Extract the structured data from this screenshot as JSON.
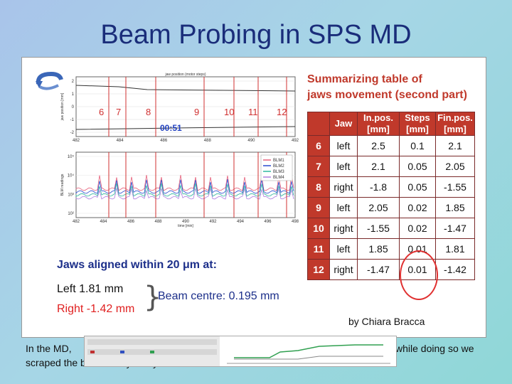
{
  "slide": {
    "title": "Beam Probing in SPS MD",
    "author": "by Chiara Bracca",
    "caption_left": "In the MD,",
    "caption_right": "while doing so we",
    "caption_line2": "scraped the beam away bit by bit."
  },
  "plot_top": {
    "title": "jaw position (motor steps)",
    "ylabel": "jaw position [mm]",
    "xlabel": "event time [min]",
    "yticks": [
      "2",
      "1",
      "0",
      "-1",
      "-2"
    ],
    "xticks": [
      "482",
      "484",
      "486",
      "488",
      "490",
      "492"
    ],
    "step_labels": [
      "6",
      "7",
      "8",
      "9",
      "10",
      "11",
      "12"
    ],
    "timer": "00:51"
  },
  "plot_bottom": {
    "ylabel": "BLM readings",
    "xlabel": "time [min]",
    "yticks": [
      "10⁵",
      "10⁴",
      "10³",
      "10²"
    ],
    "xticks": [
      "482",
      "484",
      "486",
      "488",
      "490",
      "492",
      "494",
      "496",
      "498"
    ],
    "legend": [
      {
        "name": "BLM1",
        "color": "#e6607a"
      },
      {
        "name": "BLM2",
        "color": "#2a4bd0"
      },
      {
        "name": "BLM3",
        "color": "#2fb9a0"
      },
      {
        "name": "BLM4",
        "color": "#b07de0"
      }
    ]
  },
  "alignment": {
    "title": "Jaws aligned within 20 μm at:",
    "left": "Left   1.81 mm",
    "right": "Right -1.42 mm",
    "beam_centre": "Beam centre: 0.195 mm"
  },
  "table": {
    "title_line1": "Summarizing table of",
    "title_line2": "jaws movement (second part)",
    "headers": [
      "",
      "Jaw",
      "In.pos. [mm]",
      "Steps [mm]",
      "Fin.pos. [mm]"
    ],
    "rows": [
      {
        "num": "6",
        "jaw": "left",
        "in": "2.5",
        "step": "0.1",
        "fin": "2.1"
      },
      {
        "num": "7",
        "jaw": "left",
        "in": "2.1",
        "step": "0.05",
        "fin": "2.05"
      },
      {
        "num": "8",
        "jaw": "right",
        "in": "-1.8",
        "step": "0.05",
        "fin": "-1.55"
      },
      {
        "num": "9",
        "jaw": "left",
        "in": "2.05",
        "step": "0.02",
        "fin": "1.85"
      },
      {
        "num": "10",
        "jaw": "right",
        "in": "-1.55",
        "step": "0.02",
        "fin": "-1.47"
      },
      {
        "num": "11",
        "jaw": "left",
        "in": "1.85",
        "step": "0.01",
        "fin": "1.81"
      },
      {
        "num": "12",
        "jaw": "right",
        "in": "-1.47",
        "step": "0.01",
        "fin": "-1.42"
      }
    ]
  },
  "colors": {
    "title": "#1a2d7a",
    "accent_red": "#c0392b",
    "alignment_blue": "#1c2f8a"
  },
  "icons": [
    "rotate-arrow-icon"
  ]
}
